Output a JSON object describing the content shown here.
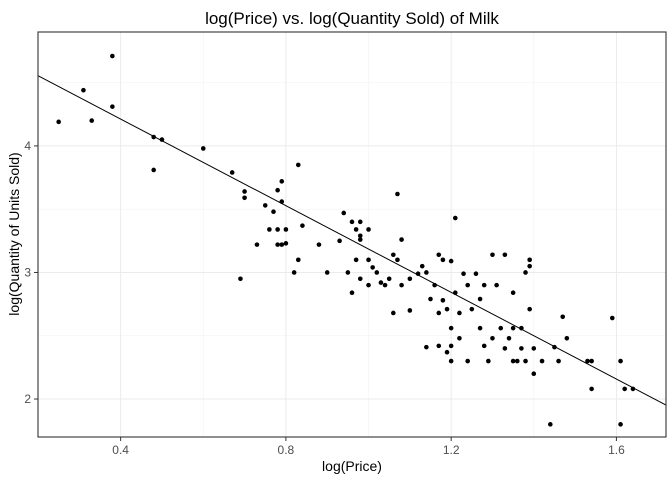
{
  "chart_data": {
    "type": "scatter",
    "title": "log(Price) vs. log(Quantity Sold) of Milk",
    "xlabel": "log(Price)",
    "ylabel": "log(Quantity of Units Sold)",
    "xlim": [
      0.2,
      1.72
    ],
    "ylim": [
      1.7,
      4.9
    ],
    "x_ticks": [
      0.4,
      0.8,
      1.2,
      1.6
    ],
    "y_ticks": [
      2,
      3,
      4
    ],
    "x_tick_labels": [
      "0.4",
      "0.8",
      "1.2",
      "1.6"
    ],
    "y_tick_labels": [
      "2",
      "3",
      "4"
    ],
    "grid": true,
    "legend": "none",
    "point_color": "#000000",
    "fit_line": {
      "type": "linear",
      "intercept": 4.897,
      "slope": -1.712
    },
    "points": [
      [
        0.25,
        4.19
      ],
      [
        0.31,
        4.44
      ],
      [
        0.33,
        4.2
      ],
      [
        0.38,
        4.71
      ],
      [
        0.38,
        4.31
      ],
      [
        0.48,
        4.07
      ],
      [
        0.48,
        3.81
      ],
      [
        0.5,
        4.05
      ],
      [
        0.6,
        3.98
      ],
      [
        0.67,
        3.79
      ],
      [
        0.69,
        2.95
      ],
      [
        0.7,
        3.64
      ],
      [
        0.7,
        3.59
      ],
      [
        0.73,
        3.22
      ],
      [
        0.75,
        3.53
      ],
      [
        0.76,
        3.34
      ],
      [
        0.77,
        3.48
      ],
      [
        0.78,
        3.65
      ],
      [
        0.78,
        3.22
      ],
      [
        0.78,
        3.34
      ],
      [
        0.79,
        3.72
      ],
      [
        0.79,
        3.56
      ],
      [
        0.79,
        3.22
      ],
      [
        0.8,
        3.34
      ],
      [
        0.8,
        3.23
      ],
      [
        0.82,
        3.0
      ],
      [
        0.83,
        3.85
      ],
      [
        0.83,
        3.1
      ],
      [
        0.84,
        3.37
      ],
      [
        0.88,
        3.22
      ],
      [
        0.9,
        3.0
      ],
      [
        0.93,
        3.25
      ],
      [
        0.94,
        3.47
      ],
      [
        0.95,
        3.0
      ],
      [
        0.96,
        3.4
      ],
      [
        0.96,
        2.84
      ],
      [
        0.97,
        3.34
      ],
      [
        0.97,
        3.1
      ],
      [
        0.98,
        3.29
      ],
      [
        0.98,
        3.26
      ],
      [
        0.98,
        3.4
      ],
      [
        0.98,
        2.95
      ],
      [
        1.0,
        3.34
      ],
      [
        1.0,
        3.1
      ],
      [
        1.0,
        2.9
      ],
      [
        1.01,
        3.04
      ],
      [
        1.02,
        3.0
      ],
      [
        1.03,
        2.92
      ],
      [
        1.04,
        2.9
      ],
      [
        1.05,
        2.95
      ],
      [
        1.06,
        3.14
      ],
      [
        1.06,
        2.68
      ],
      [
        1.07,
        3.62
      ],
      [
        1.07,
        3.1
      ],
      [
        1.08,
        3.26
      ],
      [
        1.08,
        2.9
      ],
      [
        1.1,
        2.95
      ],
      [
        1.1,
        2.7
      ],
      [
        1.12,
        2.99
      ],
      [
        1.13,
        3.05
      ],
      [
        1.14,
        3.0
      ],
      [
        1.14,
        2.41
      ],
      [
        1.15,
        2.79
      ],
      [
        1.16,
        2.9
      ],
      [
        1.17,
        3.14
      ],
      [
        1.17,
        2.68
      ],
      [
        1.17,
        2.42
      ],
      [
        1.18,
        3.1
      ],
      [
        1.18,
        2.78
      ],
      [
        1.19,
        2.71
      ],
      [
        1.19,
        2.37
      ],
      [
        1.2,
        3.09
      ],
      [
        1.2,
        2.56
      ],
      [
        1.2,
        2.3
      ],
      [
        1.2,
        2.42
      ],
      [
        1.21,
        3.43
      ],
      [
        1.21,
        2.84
      ],
      [
        1.22,
        2.68
      ],
      [
        1.22,
        2.48
      ],
      [
        1.23,
        2.99
      ],
      [
        1.24,
        2.9
      ],
      [
        1.24,
        2.3
      ],
      [
        1.25,
        2.71
      ],
      [
        1.26,
        2.99
      ],
      [
        1.27,
        2.79
      ],
      [
        1.27,
        2.56
      ],
      [
        1.28,
        2.9
      ],
      [
        1.28,
        2.42
      ],
      [
        1.29,
        2.3
      ],
      [
        1.3,
        3.14
      ],
      [
        1.3,
        2.48
      ],
      [
        1.31,
        2.9
      ],
      [
        1.32,
        2.56
      ],
      [
        1.33,
        2.4
      ],
      [
        1.33,
        3.14
      ],
      [
        1.34,
        2.48
      ],
      [
        1.35,
        2.56
      ],
      [
        1.35,
        2.3
      ],
      [
        1.35,
        2.84
      ],
      [
        1.36,
        2.3
      ],
      [
        1.37,
        2.4
      ],
      [
        1.37,
        2.56
      ],
      [
        1.38,
        3.0
      ],
      [
        1.38,
        2.3
      ],
      [
        1.39,
        2.71
      ],
      [
        1.39,
        3.05
      ],
      [
        1.39,
        3.1
      ],
      [
        1.4,
        2.2
      ],
      [
        1.4,
        2.4
      ],
      [
        1.42,
        2.3
      ],
      [
        1.44,
        1.8
      ],
      [
        1.45,
        2.41
      ],
      [
        1.46,
        2.3
      ],
      [
        1.47,
        2.65
      ],
      [
        1.48,
        2.48
      ],
      [
        1.53,
        2.3
      ],
      [
        1.54,
        2.3
      ],
      [
        1.54,
        2.08
      ],
      [
        1.59,
        2.64
      ],
      [
        1.61,
        2.3
      ],
      [
        1.61,
        1.8
      ],
      [
        1.62,
        2.08
      ],
      [
        1.64,
        2.08
      ]
    ]
  }
}
